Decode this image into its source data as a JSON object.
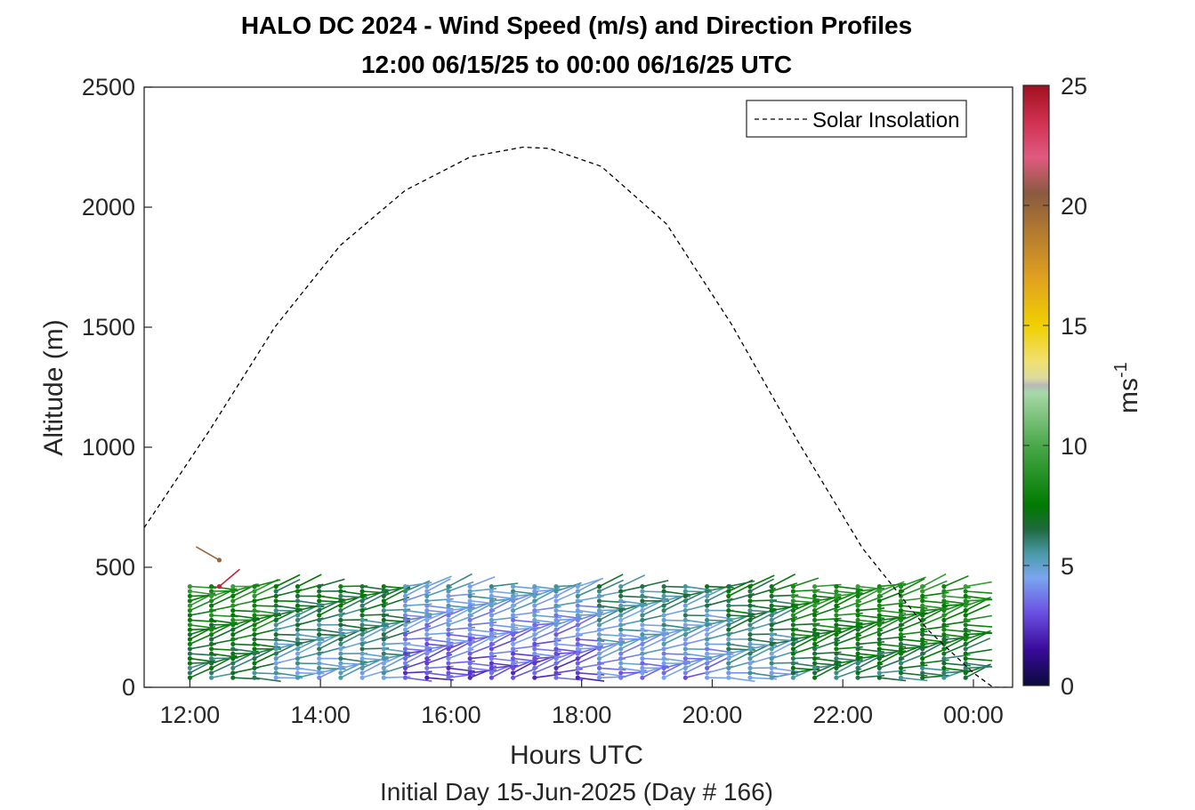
{
  "chart_data": {
    "type": "wind-barb-profile",
    "title": "HALO DC 2024 - Wind Speed (m/s) and Direction Profiles",
    "subtitle": "12:00 06/15/25 to 00:00 06/16/25  UTC",
    "xlabel": "Hours UTC",
    "ylabel": "Altitude (m)",
    "footer": "Initial Day 15-Jun-2025 (Day # 166)",
    "x_tick_labels": [
      "12:00",
      "14:00",
      "16:00",
      "18:00",
      "20:00",
      "22:00",
      "00:00"
    ],
    "x_ticks_hours": [
      12,
      14,
      16,
      18,
      20,
      22,
      24
    ],
    "xlim_hours": [
      11.3,
      24.6
    ],
    "y_ticks": [
      0,
      500,
      1000,
      1500,
      2000,
      2500
    ],
    "ylim": [
      0,
      2500
    ],
    "grid": false,
    "legend": {
      "position": "top-right",
      "entries": [
        "Solar Insolation"
      ]
    },
    "colorbar": {
      "label": "ms",
      "label_exponent": "-1",
      "ticks": [
        0,
        5,
        10,
        15,
        20,
        25
      ],
      "range": [
        0,
        25
      ],
      "stops": [
        {
          "v": 0,
          "c": "#0a0a3c"
        },
        {
          "v": 1.5,
          "c": "#3a0a9a"
        },
        {
          "v": 3,
          "c": "#6a4fe0"
        },
        {
          "v": 4.5,
          "c": "#7aa6f0"
        },
        {
          "v": 5.5,
          "c": "#4a9aa8"
        },
        {
          "v": 6.5,
          "c": "#1f6a3f"
        },
        {
          "v": 7.5,
          "c": "#007a00"
        },
        {
          "v": 10,
          "c": "#4aa84a"
        },
        {
          "v": 12.2,
          "c": "#a8d8a8"
        },
        {
          "v": 12.5,
          "c": "#b8b8b8"
        },
        {
          "v": 12.8,
          "c": "#dcdca0"
        },
        {
          "v": 13.5,
          "c": "#f0e070"
        },
        {
          "v": 15,
          "c": "#f0d000"
        },
        {
          "v": 17,
          "c": "#e0a020"
        },
        {
          "v": 19,
          "c": "#b07830"
        },
        {
          "v": 20.5,
          "c": "#8a5a40"
        },
        {
          "v": 22,
          "c": "#e05a80"
        },
        {
          "v": 23.5,
          "c": "#d03050"
        },
        {
          "v": 25,
          "c": "#a01020"
        }
      ]
    },
    "solar_insolation": {
      "style": "dashed",
      "x_hours": [
        11.3,
        12.3,
        13.3,
        14.3,
        15.3,
        16.3,
        17.1,
        17.5,
        18.3,
        19.3,
        20.3,
        21.3,
        22.3,
        23.3,
        24.0,
        24.3,
        24.6
      ],
      "altitude_equiv_m": [
        665,
        1070,
        1500,
        1840,
        2070,
        2210,
        2250,
        2245,
        2170,
        1930,
        1510,
        1030,
        580,
        240,
        60,
        0,
        0
      ]
    },
    "wind_profiles": {
      "time_start_hours": 12.0,
      "time_end_hours": 24.0,
      "time_step_hours": 0.33,
      "altitude_start_m": 40,
      "altitude_end_m": 420,
      "altitude_step_m": 20,
      "typical_speed_by_period": [
        {
          "from_hour": 12.0,
          "to_hour": 13.0,
          "speed_ms": 7.0
        },
        {
          "from_hour": 13.0,
          "to_hour": 15.0,
          "speed_ms": 5.5
        },
        {
          "from_hour": 15.0,
          "to_hour": 18.0,
          "speed_ms": 3.5
        },
        {
          "from_hour": 18.0,
          "to_hour": 20.0,
          "speed_ms": 4.5
        },
        {
          "from_hour": 20.0,
          "to_hour": 21.0,
          "speed_ms": 5.5
        },
        {
          "from_hour": 21.0,
          "to_hour": 24.0,
          "speed_ms": 7.0
        }
      ],
      "outliers": [
        {
          "hour": 12.45,
          "alt_m": 530,
          "speed_ms": 20.0
        },
        {
          "hour": 12.45,
          "alt_m": 420,
          "speed_ms": 24.0
        }
      ]
    }
  }
}
